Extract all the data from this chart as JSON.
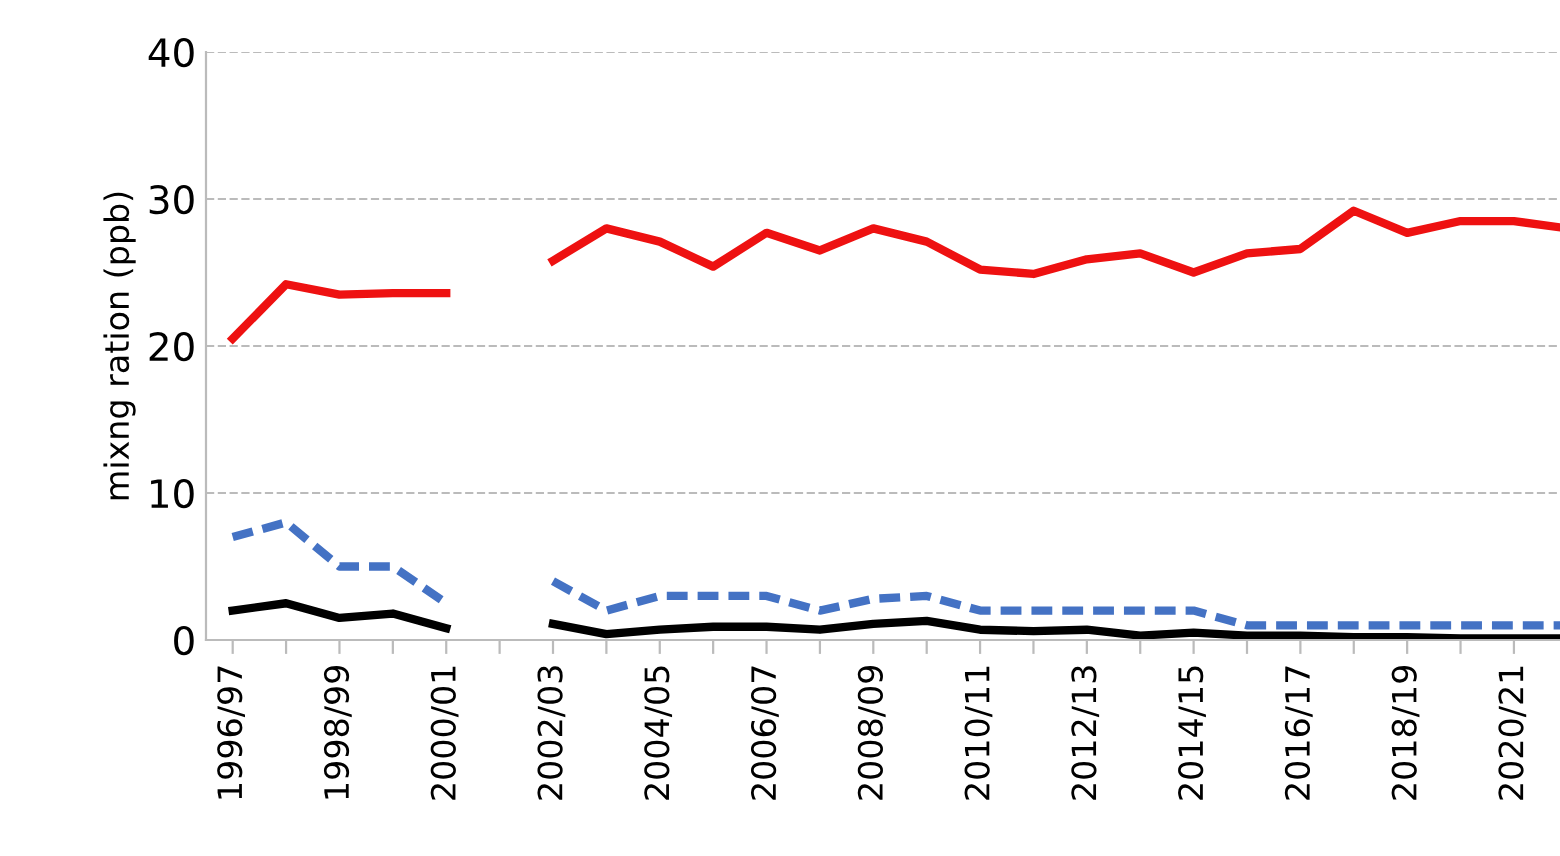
{
  "chart_data": {
    "type": "line",
    "ylabel": "mixng ration (ppb)",
    "categories": [
      "1996/97",
      null,
      "1998/99",
      null,
      "2000/01",
      null,
      "2002/03",
      null,
      "2004/05",
      null,
      "2006/07",
      null,
      "2008/09",
      null,
      "2010/11",
      null,
      "2012/13",
      null,
      "2014/15",
      null,
      "2016/17",
      null,
      "2018/19",
      null,
      "2020/21",
      null
    ],
    "series": [
      {
        "color": "#ee1111",
        "line_style": "solid",
        "values": [
          20.5,
          24.2,
          23.5,
          23.6,
          23.6,
          null,
          25.8,
          28.0,
          27.1,
          25.4,
          27.7,
          26.5,
          28.0,
          27.1,
          25.2,
          24.9,
          25.9,
          26.3,
          25.0,
          26.3,
          26.6,
          29.2,
          27.7,
          28.5,
          28.5,
          28.0
        ]
      },
      {
        "color": "#4472c4",
        "line_style": "dashed",
        "values": [
          7.0,
          8.0,
          5.0,
          5.0,
          2.5,
          null,
          4.0,
          2.0,
          3.0,
          3.0,
          3.0,
          2.0,
          2.8,
          3.0,
          2.0,
          2.0,
          2.0,
          2.0,
          2.0,
          1.0,
          1.0,
          1.0,
          1.0,
          1.0,
          1.0,
          1.0
        ]
      },
      {
        "color": "#000000",
        "line_style": "solid",
        "values": [
          2.0,
          2.5,
          1.5,
          1.8,
          0.8,
          null,
          1.1,
          0.4,
          0.7,
          0.9,
          0.9,
          0.7,
          1.1,
          1.3,
          0.7,
          0.6,
          0.7,
          0.3,
          0.5,
          0.3,
          0.3,
          0.2,
          0.2,
          0.1,
          0.1,
          0.1
        ]
      }
    ],
    "ylim": [
      0,
      40
    ],
    "yticks": [
      0,
      10,
      20,
      30,
      40
    ],
    "grid": "y",
    "marker": "none",
    "legend": false
  }
}
